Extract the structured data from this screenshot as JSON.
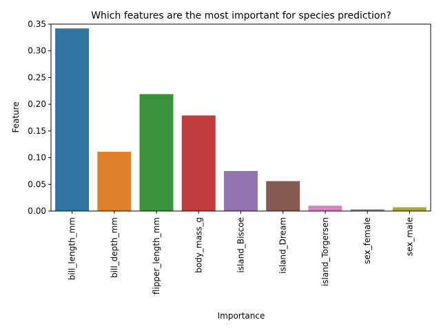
{
  "chart_data": {
    "type": "bar",
    "title": "Which features are the most important for species prediction?",
    "xlabel": "Importance",
    "ylabel": "Feature",
    "categories": [
      "bill_length_mm",
      "bill_depth_mm",
      "flipper_length_mm",
      "body_mass_g",
      "island_Biscoe",
      "island_Dream",
      "island_Torgersen",
      "sex_female",
      "sex_male"
    ],
    "values": [
      0.342,
      0.111,
      0.219,
      0.179,
      0.075,
      0.056,
      0.01,
      0.003,
      0.007
    ],
    "colors": [
      "#3274a1",
      "#e1812c",
      "#3a923a",
      "#c03d3e",
      "#9372b2",
      "#845b53",
      "#d684bd",
      "#7f7f7f",
      "#a9aa35"
    ],
    "ylim": [
      0,
      0.35
    ],
    "yticks": [
      0.0,
      0.05,
      0.1,
      0.15,
      0.2,
      0.25,
      0.3,
      0.35
    ],
    "ytick_labels": [
      "0.00",
      "0.05",
      "0.10",
      "0.15",
      "0.20",
      "0.25",
      "0.30",
      "0.35"
    ],
    "grid": false,
    "legend": "none"
  }
}
